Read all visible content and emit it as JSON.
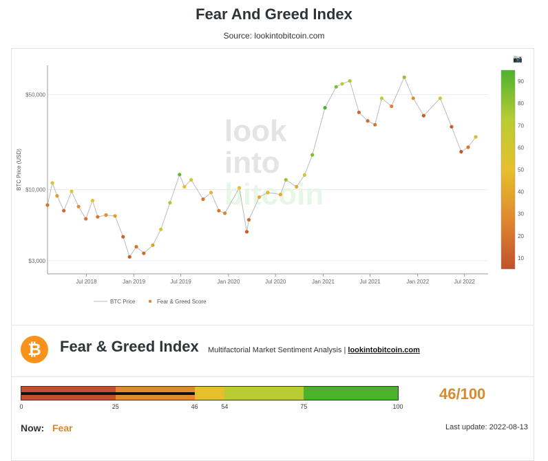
{
  "page": {
    "title": "Fear And Greed Index",
    "source": "Source: lookintobitcoin.com"
  },
  "chart_data": {
    "type": "scatter",
    "ylabel": "BTC Price (USD)",
    "yscale": "log",
    "ylim": [
      2400,
      82000
    ],
    "y_ticks": [
      {
        "value": 3000,
        "label": "$3,000"
      },
      {
        "value": 10000,
        "label": "$10,000"
      },
      {
        "value": 50000,
        "label": "$50,000"
      }
    ],
    "x_ticks": [
      "Jul 2018",
      "Jan 2019",
      "Jul 2019",
      "Jan 2020",
      "Jul 2020",
      "Jan 2021",
      "Jul 2021",
      "Jan 2022",
      "Jul 2022"
    ],
    "x_range": [
      "2018-02-01",
      "2022-09-30"
    ],
    "watermark": [
      "look",
      "into",
      "bitcoin"
    ],
    "legend": [
      {
        "name": "BTC Price",
        "color": "#bbbbbb",
        "shape": "line"
      },
      {
        "name": "Fear & Greed Score",
        "color": "#e08a2c",
        "shape": "dot"
      }
    ],
    "legend_position": "bottom-left",
    "colorbar": {
      "range": [
        5,
        95
      ],
      "ticks": [
        10,
        20,
        30,
        40,
        50,
        60,
        70,
        80,
        90
      ]
    },
    "grid": true,
    "series": [
      {
        "name": "BTC Price",
        "points": [
          {
            "date": "2018-02-01",
            "price": 7700,
            "score": 20
          },
          {
            "date": "2018-02-20",
            "price": 11200,
            "score": 55
          },
          {
            "date": "2018-03-10",
            "price": 9000,
            "score": 35
          },
          {
            "date": "2018-04-05",
            "price": 7000,
            "score": 15
          },
          {
            "date": "2018-05-05",
            "price": 9700,
            "score": 50
          },
          {
            "date": "2018-06-01",
            "price": 7500,
            "score": 30
          },
          {
            "date": "2018-06-29",
            "price": 6100,
            "score": 20
          },
          {
            "date": "2018-07-25",
            "price": 8300,
            "score": 50
          },
          {
            "date": "2018-08-14",
            "price": 6300,
            "score": 20
          },
          {
            "date": "2018-09-15",
            "price": 6500,
            "score": 30
          },
          {
            "date": "2018-10-20",
            "price": 6400,
            "score": 35
          },
          {
            "date": "2018-11-20",
            "price": 4500,
            "score": 12
          },
          {
            "date": "2018-12-15",
            "price": 3200,
            "score": 10
          },
          {
            "date": "2019-01-10",
            "price": 3800,
            "score": 20
          },
          {
            "date": "2019-02-08",
            "price": 3400,
            "score": 15
          },
          {
            "date": "2019-03-15",
            "price": 3900,
            "score": 35
          },
          {
            "date": "2019-04-15",
            "price": 5100,
            "score": 60
          },
          {
            "date": "2019-05-20",
            "price": 8000,
            "score": 75
          },
          {
            "date": "2019-06-26",
            "price": 12900,
            "score": 90
          },
          {
            "date": "2019-07-15",
            "price": 10500,
            "score": 50
          },
          {
            "date": "2019-08-10",
            "price": 11800,
            "score": 60
          },
          {
            "date": "2019-09-25",
            "price": 8500,
            "score": 20
          },
          {
            "date": "2019-10-26",
            "price": 9500,
            "score": 45
          },
          {
            "date": "2019-11-25",
            "price": 7000,
            "score": 20
          },
          {
            "date": "2019-12-18",
            "price": 6700,
            "score": 25
          },
          {
            "date": "2020-02-12",
            "price": 10300,
            "score": 50
          },
          {
            "date": "2020-03-12",
            "price": 4900,
            "score": 10
          },
          {
            "date": "2020-03-20",
            "price": 6000,
            "score": 15
          },
          {
            "date": "2020-04-29",
            "price": 8800,
            "score": 40
          },
          {
            "date": "2020-06-01",
            "price": 9500,
            "score": 45
          },
          {
            "date": "2020-07-20",
            "price": 9200,
            "score": 40
          },
          {
            "date": "2020-08-10",
            "price": 11800,
            "score": 80
          },
          {
            "date": "2020-09-20",
            "price": 10500,
            "score": 40
          },
          {
            "date": "2020-10-21",
            "price": 12800,
            "score": 60
          },
          {
            "date": "2020-11-20",
            "price": 18000,
            "score": 85
          },
          {
            "date": "2021-01-08",
            "price": 40000,
            "score": 95
          },
          {
            "date": "2021-02-20",
            "price": 57000,
            "score": 85
          },
          {
            "date": "2021-03-15",
            "price": 60000,
            "score": 70
          },
          {
            "date": "2021-04-14",
            "price": 63000,
            "score": 75
          },
          {
            "date": "2021-05-19",
            "price": 37000,
            "score": 15
          },
          {
            "date": "2021-06-22",
            "price": 32000,
            "score": 15
          },
          {
            "date": "2021-07-20",
            "price": 30000,
            "score": 20
          },
          {
            "date": "2021-08-15",
            "price": 47000,
            "score": 70
          },
          {
            "date": "2021-09-22",
            "price": 41000,
            "score": 25
          },
          {
            "date": "2021-11-10",
            "price": 67000,
            "score": 80
          },
          {
            "date": "2021-12-15",
            "price": 47000,
            "score": 30
          },
          {
            "date": "2022-01-24",
            "price": 35000,
            "score": 10
          },
          {
            "date": "2022-03-29",
            "price": 47000,
            "score": 60
          },
          {
            "date": "2022-05-12",
            "price": 29000,
            "score": 10
          },
          {
            "date": "2022-06-18",
            "price": 19000,
            "score": 8
          },
          {
            "date": "2022-07-15",
            "price": 20500,
            "score": 20
          },
          {
            "date": "2022-08-13",
            "price": 24400,
            "score": 46
          }
        ]
      }
    ]
  },
  "panel": {
    "logo_symbol": "₿",
    "title": "Fear & Greed Index",
    "subtitle": "Multifactorial Market Sentiment Analysis |",
    "link_text": "lookintobitcoin.com"
  },
  "gauge": {
    "value": 46,
    "max": 100,
    "segments": [
      {
        "from": 0,
        "to": 25,
        "color": "#c0512c"
      },
      {
        "from": 25,
        "to": 46,
        "color": "#e0892e"
      },
      {
        "from": 46,
        "to": 54,
        "color": "#e6c02c"
      },
      {
        "from": 54,
        "to": 75,
        "color": "#b9cc34"
      },
      {
        "from": 75,
        "to": 100,
        "color": "#4cb22e"
      }
    ],
    "ticks": [
      {
        "value": 0,
        "label": "0"
      },
      {
        "value": 25,
        "label": "25"
      },
      {
        "value": 46,
        "label": "46"
      },
      {
        "value": 54,
        "label": "54"
      },
      {
        "value": 75,
        "label": "75"
      },
      {
        "value": 100,
        "label": "100"
      }
    ],
    "score_text": "46/100"
  },
  "status": {
    "now_label": "Now:",
    "now_value": "Fear",
    "last_update": "Last update: 2022-08-13"
  },
  "colors": {
    "fear": "#c0512c",
    "greed": "#4cb22e",
    "accent": "#d98a2e"
  }
}
